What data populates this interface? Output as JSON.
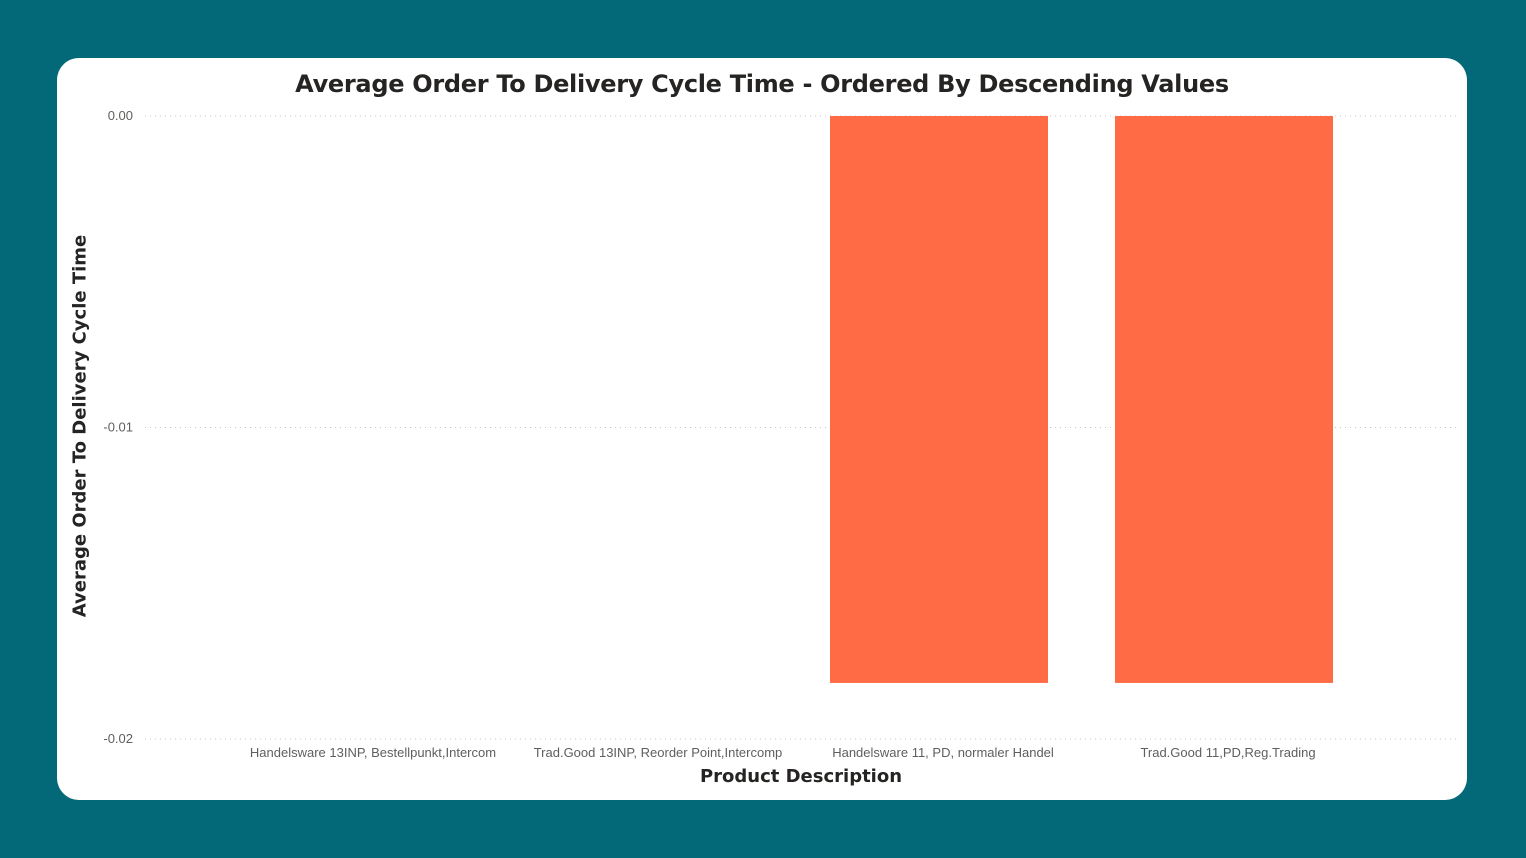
{
  "colors": {
    "background": "#036878",
    "card": "#ffffff",
    "bar": "#ff6b44",
    "grid": "#c8c6c4"
  },
  "chart_data": {
    "type": "bar",
    "title": "Average Order To Delivery Cycle Time - Ordered By Descending Values",
    "xlabel": "Product Description",
    "ylabel": "Average Order To Delivery Cycle Time",
    "categories": [
      "Handelsware 13INP, Bestellpunkt,Intercom",
      "Trad.Good 13INP, Reorder Point,Intercomp",
      "Handelsware 11, PD, normaler Handel",
      "Trad.Good 11,PD,Reg.Trading"
    ],
    "values": [
      0,
      0,
      -0.0182,
      -0.0182
    ],
    "ylim": [
      -0.02,
      0
    ],
    "yticks": [
      0.0,
      -0.01,
      -0.02
    ],
    "ytick_labels": [
      "0.00",
      "-0.01",
      "-0.02"
    ],
    "grid": true,
    "grid_style": "dotted",
    "legend": "none"
  }
}
